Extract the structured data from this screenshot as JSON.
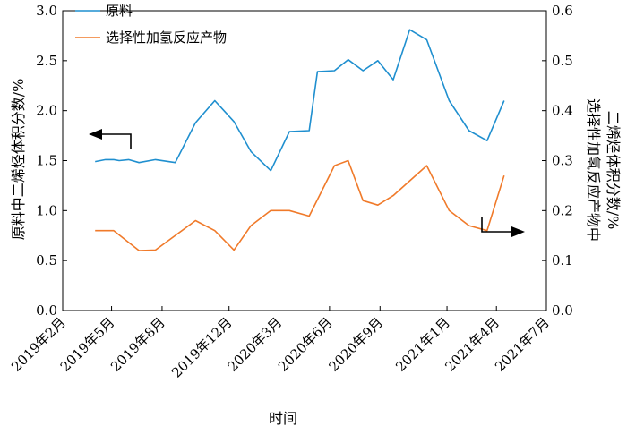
{
  "chart_data": {
    "type": "line",
    "xlabel": "时间",
    "ylabel_left": "原料中二烯烃体积分数/%",
    "ylabel_right_line1": "选择性加氢反应产物中",
    "ylabel_right_line2": "二烯烃体积分数/%",
    "y_left_lim": [
      0,
      3.0
    ],
    "y_right_lim": [
      0,
      0.6
    ],
    "y_left_ticks": [
      "0.0",
      "0.5",
      "1.0",
      "1.5",
      "2.0",
      "2.5",
      "3.0"
    ],
    "y_right_ticks": [
      "0.0",
      "0.1",
      "0.2",
      "0.3",
      "0.4",
      "0.5",
      "0.6"
    ],
    "x_ticks": [
      "2019年2月",
      "2019年5月",
      "2019年8月",
      "2019年12月",
      "2020年3月",
      "2020年6月",
      "2020年9月",
      "2021年1月",
      "2021年4月",
      "2021年7月"
    ],
    "grid": false,
    "legend_position": "top-left",
    "series": [
      {
        "name": "原料",
        "axis": "left",
        "color": "#1f8fcf",
        "points": [
          [
            "2019-04-01",
            1.49
          ],
          [
            "2019-04-20",
            1.51
          ],
          [
            "2019-05-05",
            1.51
          ],
          [
            "2019-05-15",
            1.5
          ],
          [
            "2019-06-01",
            1.51
          ],
          [
            "2019-06-20",
            1.48
          ],
          [
            "2019-07-20",
            1.51
          ],
          [
            "2019-08-25",
            1.48
          ],
          [
            "2019-10-01",
            1.88
          ],
          [
            "2019-11-05",
            2.1
          ],
          [
            "2019-12-10",
            1.89
          ],
          [
            "2020-01-10",
            1.59
          ],
          [
            "2020-02-15",
            1.4
          ],
          [
            "2020-03-20",
            1.79
          ],
          [
            "2020-04-25",
            1.8
          ],
          [
            "2020-05-10",
            2.39
          ],
          [
            "2020-06-10",
            2.4
          ],
          [
            "2020-07-05",
            2.51
          ],
          [
            "2020-08-01",
            2.4
          ],
          [
            "2020-08-28",
            2.5
          ],
          [
            "2020-09-25",
            2.31
          ],
          [
            "2020-10-25",
            2.81
          ],
          [
            "2020-11-25",
            2.71
          ],
          [
            "2021-01-05",
            2.1
          ],
          [
            "2021-02-10",
            1.8
          ],
          [
            "2021-03-15",
            1.7
          ],
          [
            "2021-04-15",
            2.1
          ]
        ]
      },
      {
        "name": "选择性加氢反应产物",
        "axis": "right",
        "color": "#f07a2a",
        "points": [
          [
            "2019-04-01",
            0.16
          ],
          [
            "2019-05-05",
            0.16
          ],
          [
            "2019-06-20",
            0.12
          ],
          [
            "2019-07-20",
            0.121
          ],
          [
            "2019-10-01",
            0.18
          ],
          [
            "2019-11-05",
            0.16
          ],
          [
            "2019-12-10",
            0.121
          ],
          [
            "2020-01-10",
            0.17
          ],
          [
            "2020-02-15",
            0.2
          ],
          [
            "2020-03-20",
            0.2
          ],
          [
            "2020-04-25",
            0.189
          ],
          [
            "2020-06-10",
            0.29
          ],
          [
            "2020-07-05",
            0.3
          ],
          [
            "2020-08-01",
            0.22
          ],
          [
            "2020-08-28",
            0.211
          ],
          [
            "2020-09-25",
            0.23
          ],
          [
            "2020-11-25",
            0.29
          ],
          [
            "2021-01-05",
            0.2
          ],
          [
            "2021-02-10",
            0.17
          ],
          [
            "2021-03-15",
            0.16
          ],
          [
            "2021-04-15",
            0.27
          ]
        ]
      }
    ]
  }
}
